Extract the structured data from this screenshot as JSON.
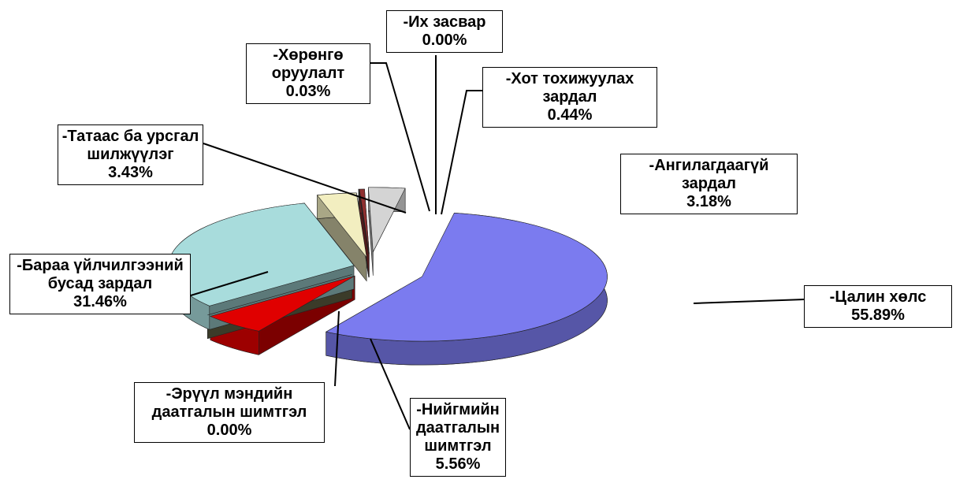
{
  "chart_data": {
    "type": "pie",
    "categories": [
      "-Цалин хөлс",
      "-Нийгмийн даатгалын шимтгэл",
      "-Эрүүл мэндийн даатгалын шимтгэл",
      "-Бараа үйлчилгээний бусад зардал",
      "-Татаас ба урсгал шилжүүлэг",
      "-Хөрөнгө оруулалт",
      "-Их засвар",
      "-Хот тохижуулах зардал",
      "-Ангилагдаагүй зардал"
    ],
    "values": [
      55.89,
      5.56,
      0.0,
      31.46,
      3.43,
      0.03,
      0.0,
      0.44,
      3.18
    ],
    "value_labels": [
      "55.89%",
      "5.56%",
      "0.00%",
      "31.46%",
      "3.43%",
      "0.03%",
      "0.00%",
      "0.44%",
      "3.18%"
    ],
    "colors": [
      "#7b7bef",
      "#e00000",
      "#6b6b4b",
      "#a8dcdc",
      "#f2eec0",
      "#8080c0",
      "#404040",
      "#903030",
      "#d4d4d4"
    ]
  }
}
